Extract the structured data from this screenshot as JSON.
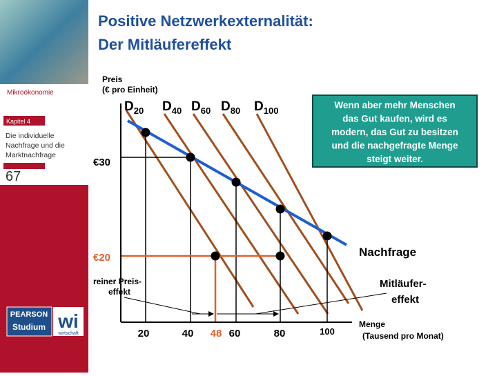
{
  "sidebar": {
    "subject": "Mikroökonomie",
    "chapter": "Kapitel 4",
    "chapter_title": [
      "Die individuelle",
      "Nachfrage und die",
      "Marktnachfrage"
    ],
    "page": "67",
    "logo": {
      "left": "PEARSON",
      "left_sub": "Studium",
      "right": "wi",
      "right_sub": "wirtschaft"
    }
  },
  "header": {
    "title": [
      "Positive Netzwerkexternalität:",
      "Der Mitläufereffekt"
    ]
  },
  "diagram": {
    "y_axis_label": [
      "Preis",
      "(€ pro Einheit)"
    ],
    "x_axis_label": [
      "Menge",
      "(Tausend pro Monat)"
    ],
    "curves": [
      {
        "letter": "D",
        "sub": "20"
      },
      {
        "letter": "D",
        "sub": "40"
      },
      {
        "letter": "D",
        "sub": "60"
      },
      {
        "letter": "D",
        "sub": "80"
      },
      {
        "letter": "D",
        "sub": "100"
      }
    ],
    "prices": [
      "€30",
      "€20"
    ],
    "quantities": [
      "20",
      "40",
      "48",
      "60",
      "80",
      "100"
    ],
    "demand_label": "Nachfrage",
    "bandwagon_label": [
      "Mitläufer-",
      "effekt"
    ],
    "pure_price_label": [
      "reiner Preis-",
      "effekt"
    ],
    "note": [
      "Wenn aber mehr Menschen",
      "das Gut kaufen, wird es",
      "modern, das Gut zu besitzen",
      "und die nachgefragte Menge",
      "steigt weiter."
    ]
  }
}
